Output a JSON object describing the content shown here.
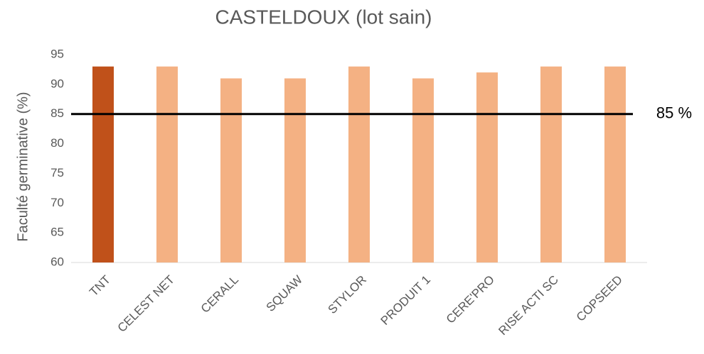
{
  "chart_data": {
    "type": "bar",
    "title": "CASTELDOUX (lot sain)",
    "y_label": "Faculté germinative (%)",
    "categories": [
      "TNT",
      "CELEST NET",
      "CERALL",
      "SQUAW",
      "STYLOR",
      "PRODUIT 1",
      "CERE'PRO",
      "RISE ACTI SC",
      "COPSEED"
    ],
    "values": [
      93,
      93,
      91,
      91,
      93,
      91,
      92,
      93,
      93
    ],
    "colors": [
      "#c0511a",
      "#f4b183",
      "#f4b183",
      "#f4b183",
      "#f4b183",
      "#f4b183",
      "#f4b183",
      "#f4b183",
      "#f4b183"
    ],
    "ylim": [
      60,
      95
    ],
    "yticks": [
      60,
      65,
      70,
      75,
      80,
      85,
      90,
      95
    ],
    "grid": false,
    "reference_line": {
      "value": 85,
      "label": "85 %",
      "color": "#000000"
    }
  }
}
